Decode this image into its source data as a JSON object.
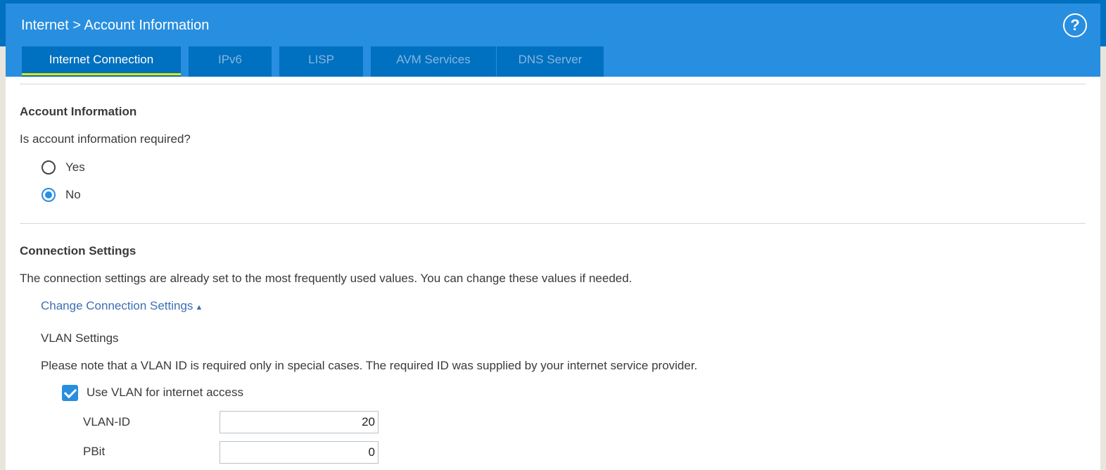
{
  "header": {
    "breadcrumb": "Internet > Account Information",
    "help_icon": "help-circle-icon"
  },
  "tabs": [
    {
      "label": "Internet Connection",
      "active": true
    },
    {
      "label": "IPv6"
    },
    {
      "label": "LISP"
    },
    {
      "label": "AVM Services"
    },
    {
      "label": "DNS Server"
    }
  ],
  "account": {
    "title": "Account Information",
    "question": "Is account information required?",
    "options": [
      {
        "label": "Yes",
        "selected": false
      },
      {
        "label": "No",
        "selected": true
      }
    ]
  },
  "connection": {
    "title": "Connection Settings",
    "description": "The connection settings are already set to the most frequently used values. You can change these values if needed.",
    "toggle_link": "Change Connection Settings",
    "toggle_icon": "triangle-up-icon"
  },
  "vlan": {
    "title": "VLAN Settings",
    "note": "Please note that a VLAN ID is required only in special cases. The required ID was supplied by your internet service provider.",
    "use_vlan_label": "Use VLAN for internet access",
    "use_vlan_checked": true,
    "vlan_id_label": "VLAN-ID",
    "vlan_id_value": "20",
    "pbit_label": "PBit",
    "pbit_value": "0"
  },
  "colors": {
    "header": "#288ee0",
    "tab": "#0070c0",
    "active_underline": "#e6e600",
    "link": "#3d6fb4"
  }
}
